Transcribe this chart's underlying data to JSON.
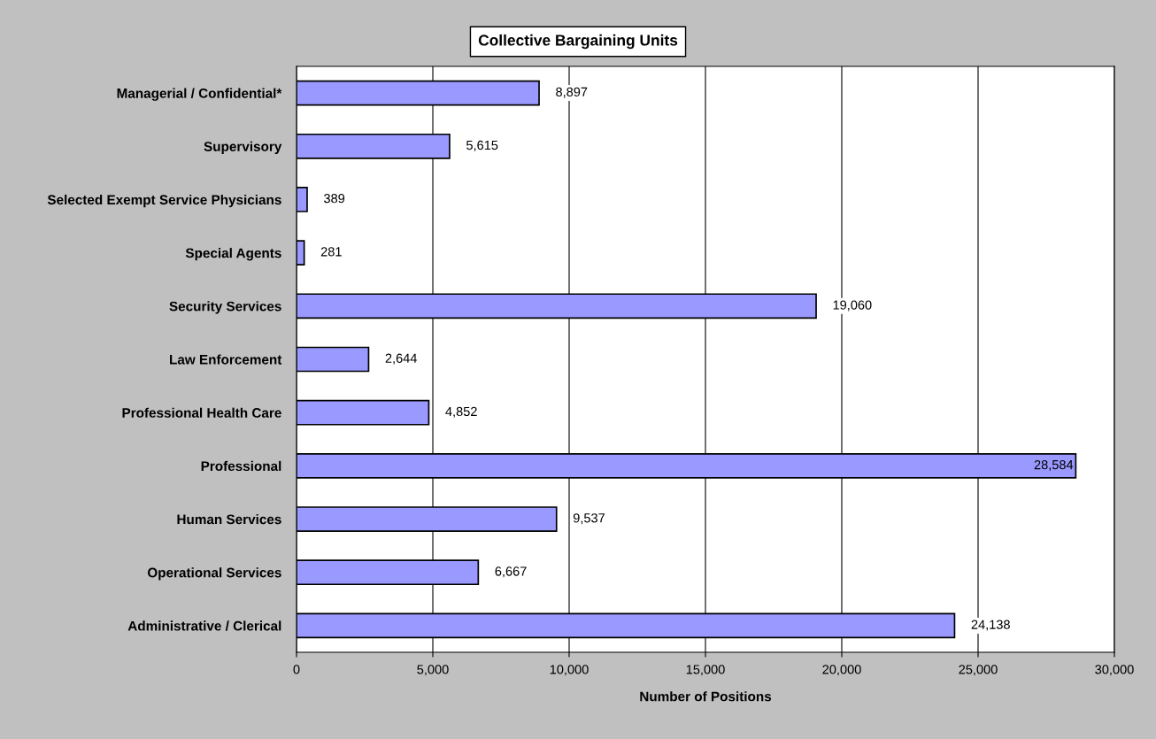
{
  "chart_data": {
    "type": "bar",
    "orientation": "horizontal",
    "title": "Collective Bargaining Units",
    "xlabel": "Number of Positions",
    "categories": [
      "Managerial / Confidential*",
      "Supervisory",
      "Selected Exempt Service Physicians",
      "Special Agents",
      "Security Services",
      "Law Enforcement",
      "Professional Health Care",
      "Professional",
      "Human Services",
      "Operational Services",
      "Administrative / Clerical"
    ],
    "values": [
      8897,
      5615,
      389,
      281,
      19060,
      2644,
      4852,
      28584,
      9537,
      6667,
      24138
    ],
    "color": "#9999ff",
    "value_labels": [
      "8,897",
      "5,615",
      "389",
      "281",
      "19,060",
      "2,644",
      "4,852",
      "28,584",
      "9,537",
      "6,667",
      "24,138"
    ],
    "xlim": [
      0,
      30000
    ],
    "xticks": [
      {
        "value": 0,
        "label": "0"
      },
      {
        "value": 5000,
        "label": "5,000"
      },
      {
        "value": 10000,
        "label": "10,000"
      },
      {
        "value": 15000,
        "label": "15,000"
      },
      {
        "value": 20000,
        "label": "20,000"
      },
      {
        "value": 25000,
        "label": "25,000"
      },
      {
        "value": 30000,
        "label": "30,000"
      }
    ],
    "grid": "x",
    "legend": false
  }
}
